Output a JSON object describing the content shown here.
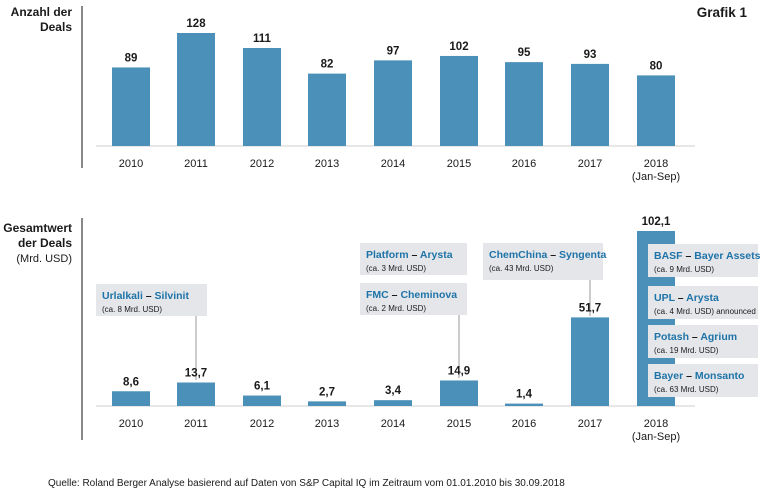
{
  "figure_label": "Grafik 1",
  "source": "Quelle: Roland Berger Analyse basierend auf Daten von S&P Capital IQ im Zeitraum vom 01.01.2010 bis 30.09.2018",
  "colors": {
    "bar": "#4a90b8",
    "axis": "#888888",
    "text": "#1a1a1a",
    "accent": "#1e73a8",
    "annotation_bg": "#e4e6e9"
  },
  "chart_data": [
    {
      "type": "bar",
      "title": "Anzahl der Deals",
      "categories": [
        "2010",
        "2011",
        "2012",
        "2013",
        "2014",
        "2015",
        "2016",
        "2017",
        "2018"
      ],
      "category_sublabels": [
        "",
        "",
        "",
        "",
        "",
        "",
        "",
        "",
        "(Jan-Sep)"
      ],
      "values": [
        89,
        128,
        111,
        82,
        97,
        102,
        95,
        93,
        80
      ],
      "value_labels": [
        "89",
        "128",
        "111",
        "82",
        "97",
        "102",
        "95",
        "93",
        "80"
      ],
      "ylim": [
        0,
        128
      ]
    },
    {
      "type": "bar",
      "title": "Gesamtwert der Deals",
      "ylabel": "(Mrd. USD)",
      "categories": [
        "2010",
        "2011",
        "2012",
        "2013",
        "2014",
        "2015",
        "2016",
        "2017",
        "2018"
      ],
      "category_sublabels": [
        "",
        "",
        "",
        "",
        "",
        "",
        "",
        "",
        "(Jan-Sep)"
      ],
      "values": [
        8.6,
        13.7,
        6.1,
        2.7,
        3.4,
        14.9,
        1.4,
        51.7,
        102.1
      ],
      "value_labels": [
        "8,6",
        "13,7",
        "6,1",
        "2,7",
        "3,4",
        "14,9",
        "1,4",
        "51,7",
        "102,1"
      ],
      "ylim": [
        0,
        102.1
      ],
      "annotations": [
        {
          "year": "2011",
          "left": "Urlalkali",
          "dash": " – ",
          "right": "Silvinit",
          "note": "",
          "value": "(ca. 8 Mrd. USD)"
        },
        {
          "year": "2015",
          "left": "Platform",
          "dash": " – ",
          "right": "Arysta",
          "note": "",
          "value": "(ca. 3 Mrd. USD)"
        },
        {
          "year": "2015",
          "left": "FMC",
          "dash": " – ",
          "right": "Cheminova",
          "note": "",
          "value": "(ca. 2 Mrd. USD)"
        },
        {
          "year": "2017",
          "left": "ChemChina",
          "dash": " – ",
          "right": "Syngenta",
          "note": "",
          "value": "(ca. 43 Mrd. USD)"
        },
        {
          "year": "2018",
          "left": "BASF",
          "dash": " – ",
          "right": "Bayer Assets",
          "note": "",
          "value": "(ca. 9 Mrd. USD)"
        },
        {
          "year": "2018",
          "left": "UPL",
          "dash": " – ",
          "right": "Arysta",
          "note": "",
          "value": "(ca. 4 Mrd. USD) announced"
        },
        {
          "year": "2018",
          "left": "Potash",
          "dash": " – ",
          "right": "Agrium",
          "note": "",
          "value": "(ca. 19 Mrd. USD)"
        },
        {
          "year": "2018",
          "left": "Bayer",
          "dash": " – ",
          "right": "Monsanto",
          "note": "",
          "value": "(ca. 63 Mrd. USD)"
        }
      ]
    }
  ]
}
